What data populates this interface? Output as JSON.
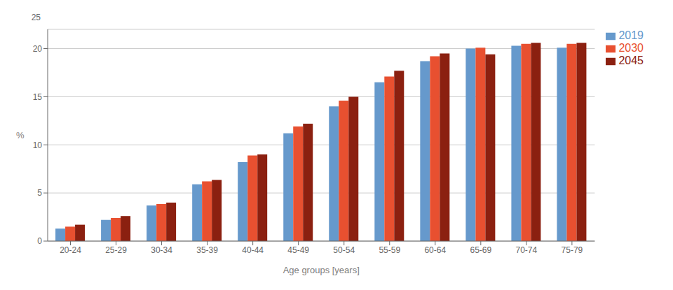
{
  "chart_data": {
    "type": "bar",
    "categories": [
      "20-24",
      "25-29",
      "30-34",
      "35-39",
      "40-44",
      "45-49",
      "50-54",
      "55-59",
      "60-64",
      "65-69",
      "70-74",
      "75-79"
    ],
    "series": [
      {
        "name": "2019",
        "color": "#6699CC",
        "values": [
          1.3,
          2.2,
          3.7,
          5.9,
          8.2,
          11.2,
          14.0,
          16.5,
          18.7,
          20.0,
          20.3,
          20.1
        ]
      },
      {
        "name": "2030",
        "color": "#E85030",
        "values": [
          1.5,
          2.4,
          3.85,
          6.2,
          8.9,
          11.9,
          14.6,
          17.1,
          19.2,
          20.1,
          20.5,
          20.5
        ]
      },
      {
        "name": "2045",
        "color": "#8B2010",
        "values": [
          1.7,
          2.6,
          4.0,
          6.35,
          9.0,
          12.2,
          15.0,
          17.7,
          19.5,
          19.4,
          20.6,
          20.6
        ]
      }
    ],
    "xlabel": "Age groups [years]",
    "ylabel": "%",
    "ylim": [
      0,
      22
    ],
    "yticks": [
      0,
      5,
      10,
      15,
      20
    ],
    "annotations": [
      "25"
    ],
    "grid": true,
    "legend": "right"
  }
}
